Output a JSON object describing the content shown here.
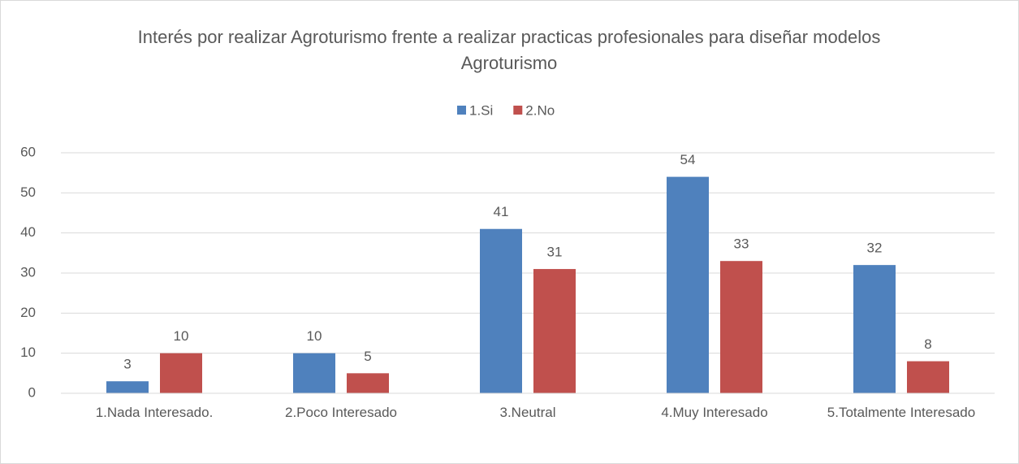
{
  "chart_data": {
    "type": "bar",
    "title": "Interés por realizar Agroturismo frente a realizar practicas profesionales  para diseñar modelos Agroturismo",
    "categories": [
      "1.Nada Interesado.",
      "2.Poco Interesado",
      "3.Neutral",
      "4.Muy Interesado",
      "5.Totalmente Interesado"
    ],
    "series": [
      {
        "name": "1.Si",
        "color": "#4f81bd",
        "values": [
          3,
          10,
          41,
          54,
          32
        ]
      },
      {
        "name": "2.No",
        "color": "#c0504d",
        "values": [
          10,
          5,
          31,
          33,
          8
        ]
      }
    ],
    "ylim": [
      0,
      60
    ],
    "yticks": [
      0,
      10,
      20,
      30,
      40,
      50,
      60
    ],
    "grid": true,
    "legend": "top"
  }
}
